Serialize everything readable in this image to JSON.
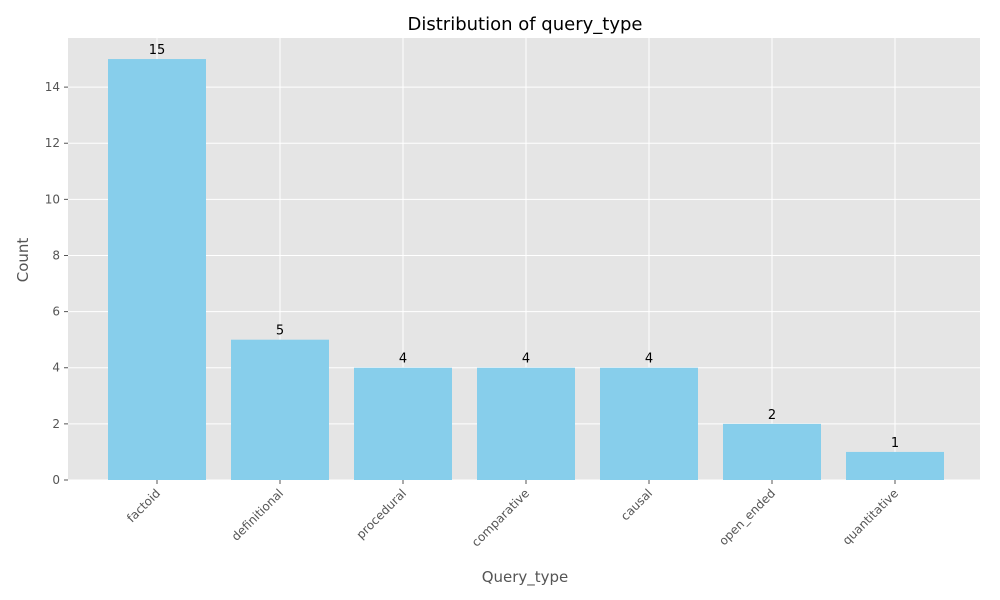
{
  "chart_data": {
    "type": "bar",
    "title": "Distribution of query_type",
    "xlabel": "Query_type",
    "ylabel": "Count",
    "categories": [
      "factoid",
      "definitional",
      "procedural",
      "comparative",
      "causal",
      "open_ended",
      "quantitative"
    ],
    "values": [
      15,
      5,
      4,
      4,
      4,
      2,
      1
    ],
    "ylim": [
      0,
      15.75
    ],
    "yticks": [
      0,
      2,
      4,
      6,
      8,
      10,
      12,
      14
    ],
    "grid": true,
    "legend": "none",
    "colors": {
      "bar": "#87CEEB",
      "plot_background": "#E5E5E5",
      "grid": "#FFFFFF"
    }
  }
}
